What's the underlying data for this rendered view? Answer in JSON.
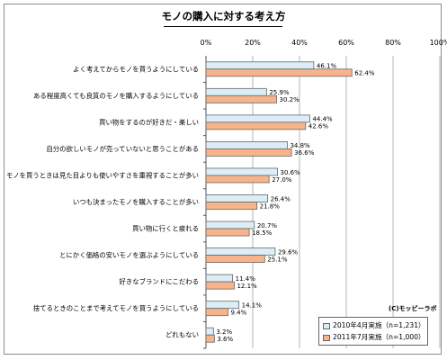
{
  "chart_data": {
    "type": "bar",
    "orientation": "horizontal",
    "title": "モノの購入に対する考え方",
    "categories": [
      "よく考えてからモノを買うようにしている",
      "ある程度高くても良質のモノを購入するようにしている",
      "買い物をするのが好きだ・楽しい",
      "自分の欲しいモノが売っていないと思うことがある",
      "モノを買うときは見た目よりも使いやすさを重視することが多い",
      "いつも決まったモノを購入することが多い",
      "買い物に行くと疲れる",
      "とにかく価格の安いモノを選ぶようにしている",
      "好きなブランドにこだわる",
      "捨てるときのことまで考えてモノを買うようにしている",
      "どれもない"
    ],
    "series": [
      {
        "name": "2010年4月実施（n=1,231）",
        "color": "#dbeef8",
        "values": [
          46.1,
          25.9,
          44.4,
          34.8,
          30.6,
          26.4,
          20.7,
          29.6,
          11.4,
          14.1,
          3.2
        ],
        "labels": [
          "46.1%",
          "25.9%",
          "44.4%",
          "34.8%",
          "30.6%",
          "26.4%",
          "20.7%",
          "29.6%",
          "11.4%",
          "14.1%",
          "3.2%"
        ]
      },
      {
        "name": "2011年7月実施（n=1,000）",
        "color": "#f7b48a",
        "values": [
          62.4,
          30.2,
          42.6,
          36.6,
          27.0,
          21.8,
          18.5,
          25.1,
          12.1,
          9.4,
          3.6
        ],
        "labels": [
          "62.4%",
          "30.2%",
          "42.6%",
          "36.6%",
          "27.0%",
          "21.8%",
          "18.5%",
          "25.1%",
          "12.1%",
          "9.4%",
          "3.6%"
        ]
      }
    ],
    "xlim": [
      0,
      100
    ],
    "xticks": [
      "0%",
      "20%",
      "40%",
      "60%",
      "80%",
      "100%"
    ],
    "grid": true,
    "legend": "bottom-right"
  },
  "source": "(C)モッピーラボ"
}
